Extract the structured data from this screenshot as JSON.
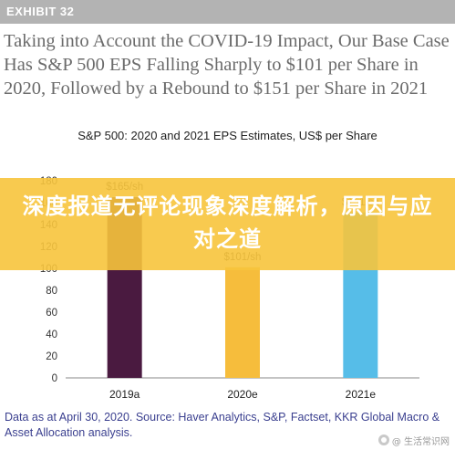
{
  "header": {
    "exhibit": "EXHIBIT 32",
    "headline": "Taking into Account the COVID-19 Impact, Our Base Case Has S&P 500 EPS Falling Sharply to $101 per Share in 2020, Followed by a Rebound to $151 per Share in 2021"
  },
  "chart_data": {
    "type": "bar",
    "title": "S&P 500: 2020 and 2021 EPS Estimates, US$ per Share",
    "categories": [
      "2019a",
      "2020e",
      "2021e"
    ],
    "values": [
      165,
      101,
      151
    ],
    "data_labels": [
      "$165/sh",
      "$101/sh",
      "$151/sh"
    ],
    "colors": [
      "#4a1a40",
      "#f6bd3c",
      "#56bde8"
    ],
    "ylim": [
      0,
      180
    ],
    "yticks": [
      0,
      20,
      40,
      60,
      80,
      100,
      120,
      140,
      160,
      180
    ],
    "xlabel": "",
    "ylabel": "",
    "grid": false,
    "legend": "none"
  },
  "overlay": {
    "banner_text": "深度报道无评论现象深度解析，原因与应对之道",
    "banner_color": "#f7c43c"
  },
  "footer": {
    "source": "Data as at April 30, 2020. Source: Haver Analytics, S&P, Factset, KKR Global Macro & Asset Allocation analysis.",
    "watermark": "@ 生活常识网"
  }
}
